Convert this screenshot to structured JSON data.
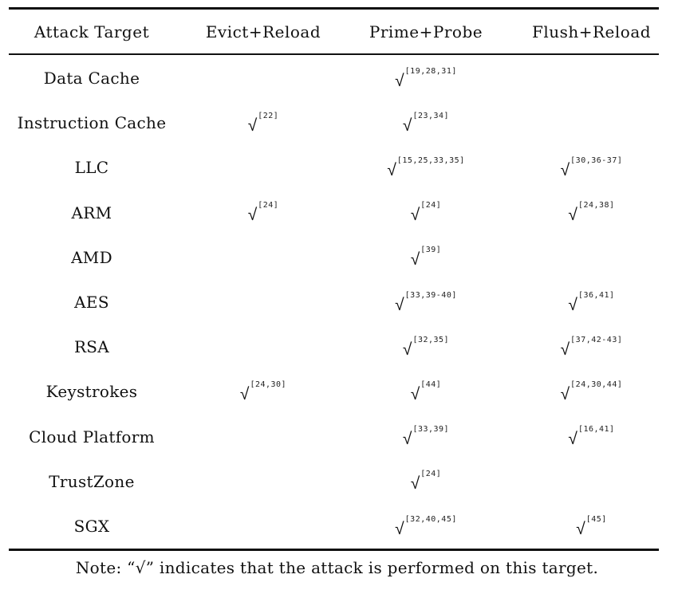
{
  "table": {
    "headers": [
      "Attack Target",
      "Evict+Reload",
      "Prime+Probe",
      "Flush+Reload"
    ],
    "check_symbol": "√",
    "rows": [
      {
        "target": "Data Cache",
        "evict_reload": null,
        "prime_probe": "[19,28,31]",
        "flush_reload": null
      },
      {
        "target": "Instruction Cache",
        "evict_reload": "[22]",
        "prime_probe": "[23,34]",
        "flush_reload": null
      },
      {
        "target": "LLC",
        "evict_reload": null,
        "prime_probe": "[15,25,33,35]",
        "flush_reload": "[30,36-37]"
      },
      {
        "target": "ARM",
        "evict_reload": "[24]",
        "prime_probe": "[24]",
        "flush_reload": "[24,38]"
      },
      {
        "target": "AMD",
        "evict_reload": null,
        "prime_probe": "[39]",
        "flush_reload": null
      },
      {
        "target": "AES",
        "evict_reload": null,
        "prime_probe": "[33,39-40]",
        "flush_reload": "[36,41]"
      },
      {
        "target": "RSA",
        "evict_reload": null,
        "prime_probe": "[32,35]",
        "flush_reload": "[37,42-43]"
      },
      {
        "target": "Keystrokes",
        "evict_reload": "[24,30]",
        "prime_probe": "[44]",
        "flush_reload": "[24,30,44]"
      },
      {
        "target": "Cloud Platform",
        "evict_reload": null,
        "prime_probe": "[33,39]",
        "flush_reload": "[16,41]"
      },
      {
        "target": "TrustZone",
        "evict_reload": null,
        "prime_probe": "[24]",
        "flush_reload": null
      },
      {
        "target": "SGX",
        "evict_reload": null,
        "prime_probe": "[32,40,45]",
        "flush_reload": "[45]"
      }
    ]
  },
  "note": "Note: “√” indicates that the attack is performed on this target."
}
